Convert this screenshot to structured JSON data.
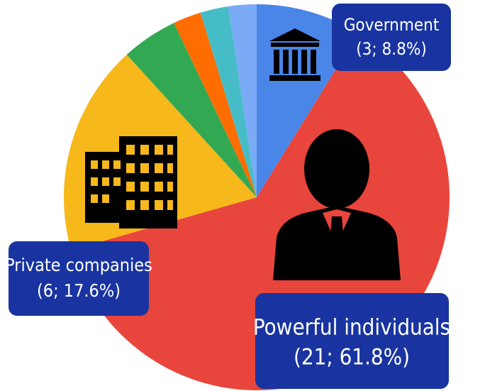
{
  "chart_data": {
    "type": "pie",
    "categories": [
      "Government",
      "Powerful individuals",
      "Private companies",
      null,
      null,
      null,
      null
    ],
    "values": [
      3,
      21,
      6,
      1.6,
      0.8,
      0.8,
      0.8
    ],
    "value_labels": [
      "(3; 8.8%)",
      "(21; 61.8%)",
      "(6; 17.6%)",
      null,
      null,
      null,
      null
    ],
    "colors": [
      "#4a86e8",
      "#e8453c",
      "#f6b81a",
      "#33a853",
      "#ff6d00",
      "#46bdc6",
      "#7baaf7"
    ]
  }
}
